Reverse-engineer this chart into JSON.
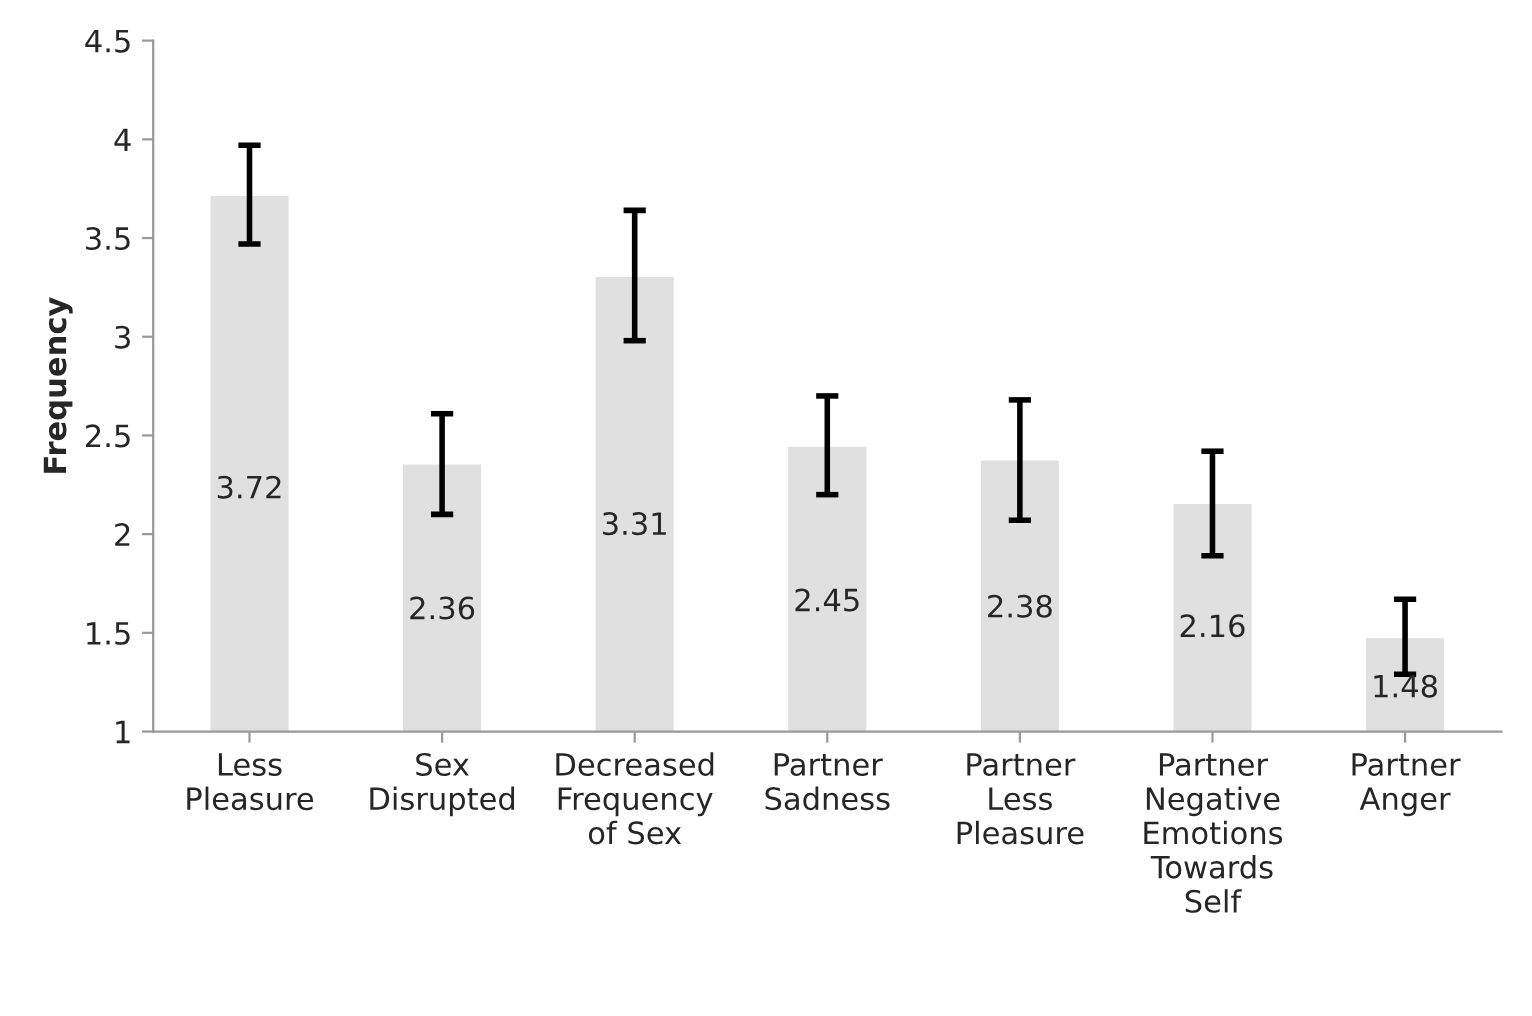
{
  "chart_data": {
    "type": "bar",
    "ylabel": "Frequency",
    "categories": [
      "Less\nPleasure",
      "Sex\nDisrupted",
      "Decreased\nFrequency\nof Sex",
      "Partner\nSadness",
      "Partner\nLess\nPleasure",
      "Partner\nNegative\nEmotions\nTowards\nSelf",
      "Partner\nAnger"
    ],
    "values": [
      3.72,
      2.36,
      3.31,
      2.45,
      2.38,
      2.16,
      1.48
    ],
    "errors": [
      [
        3.47,
        3.97
      ],
      [
        2.1,
        2.61
      ],
      [
        2.98,
        3.64
      ],
      [
        2.2,
        2.7
      ],
      [
        2.07,
        2.68
      ],
      [
        1.89,
        2.42
      ],
      [
        1.29,
        1.67
      ]
    ],
    "color": "#e0e0e0",
    "data_labels": true,
    "ylim": [
      1,
      4.5
    ],
    "yticks": [
      1,
      1.5,
      2,
      2.5,
      3,
      3.5,
      4,
      4.5
    ],
    "grid": false,
    "legend": false
  }
}
